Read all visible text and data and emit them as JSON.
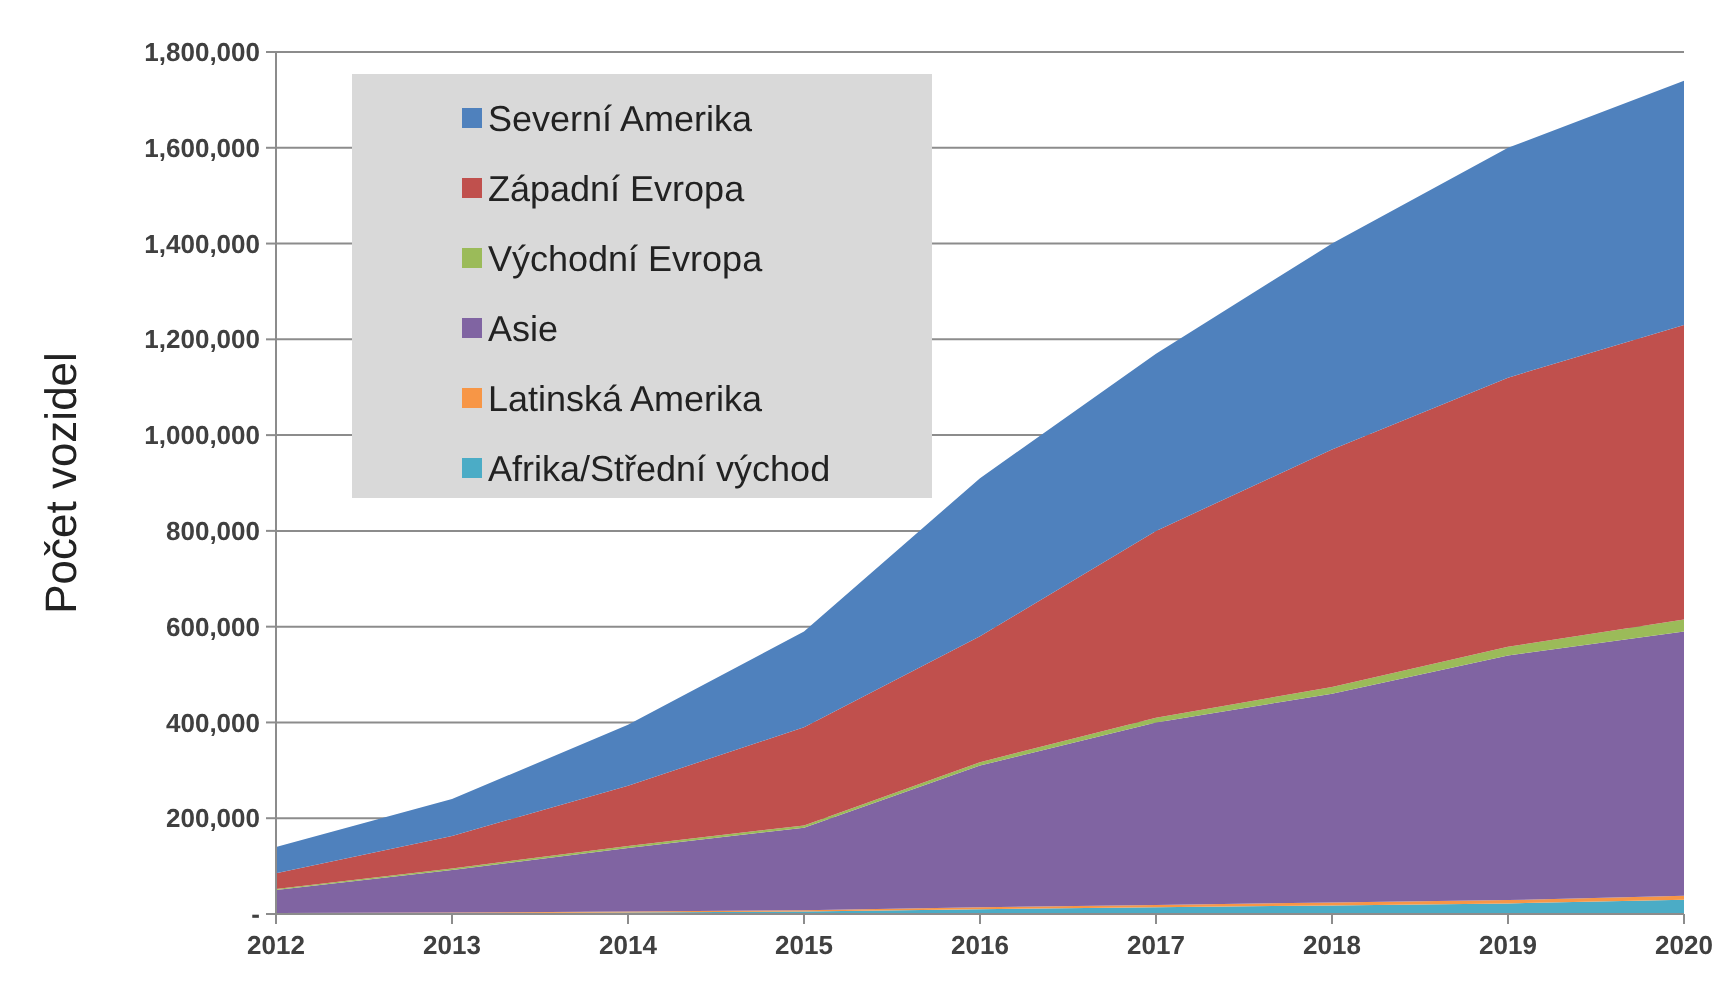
{
  "chart_data": {
    "type": "area",
    "stacked": true,
    "ylabel": "Počet vozidel",
    "x": [
      2012,
      2013,
      2014,
      2015,
      2016,
      2017,
      2018,
      2019,
      2020
    ],
    "xlim": [
      2012,
      2020
    ],
    "xticks": [
      2012,
      2013,
      2014,
      2015,
      2016,
      2017,
      2018,
      2019,
      2020
    ],
    "ylim": [
      0,
      1800000
    ],
    "yticks": [
      {
        "value": 0,
        "label": "-"
      },
      {
        "value": 200000,
        "label": "200,000"
      },
      {
        "value": 400000,
        "label": "400,000"
      },
      {
        "value": 600000,
        "label": "600,000"
      },
      {
        "value": 800000,
        "label": "800,000"
      },
      {
        "value": 1000000,
        "label": "1,000,000"
      },
      {
        "value": 1200000,
        "label": "1,200,000"
      },
      {
        "value": 1400000,
        "label": "1,400,000"
      },
      {
        "value": 1600000,
        "label": "1,600,000"
      },
      {
        "value": 1800000,
        "label": "1,800,000"
      }
    ],
    "grid": "y",
    "legend": "top left",
    "series": [
      {
        "name": "Afrika/Střední východ",
        "color": "#4bacc6",
        "values": [
          1000,
          2000,
          3000,
          5000,
          10000,
          14000,
          18000,
          22000,
          30000
        ]
      },
      {
        "name": "Latinská Amerika",
        "color": "#f79646",
        "values": [
          1000,
          1000,
          2000,
          3000,
          4000,
          5000,
          6000,
          7000,
          8000
        ]
      },
      {
        "name": "Asie",
        "color": "#8064a2",
        "values": [
          48000,
          89000,
          133000,
          172000,
          296000,
          381000,
          436000,
          511000,
          552000
        ]
      },
      {
        "name": "Východní Evropa",
        "color": "#9bbb59",
        "values": [
          2000,
          3000,
          4000,
          5000,
          7000,
          10000,
          14000,
          18000,
          25000
        ]
      },
      {
        "name": "Západní Evropa",
        "color": "#c0504d",
        "values": [
          33000,
          68000,
          126000,
          205000,
          263000,
          390000,
          496000,
          562000,
          615000
        ]
      },
      {
        "name": "Severní Amerika",
        "color": "#4f81bd",
        "values": [
          55000,
          77000,
          127000,
          200000,
          330000,
          370000,
          430000,
          480000,
          510000
        ]
      }
    ]
  }
}
